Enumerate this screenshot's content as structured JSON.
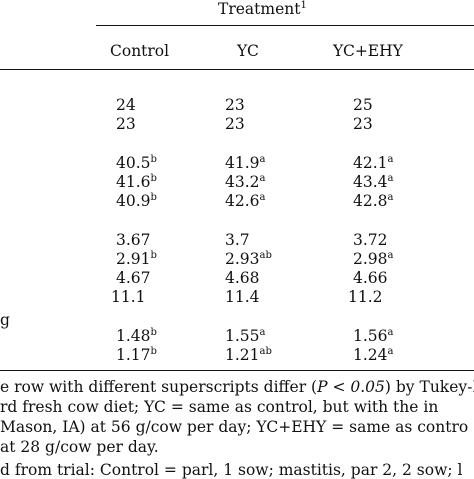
{
  "table": {
    "spanner": {
      "label": "Treatment",
      "mark": "1"
    },
    "columns": [
      "Control",
      "YC",
      "YC+EHY"
    ],
    "stub_fragment": "g",
    "rows": [
      {
        "cells": [
          {
            "v": "24",
            "s": ""
          },
          {
            "v": "23",
            "s": ""
          },
          {
            "v": "25",
            "s": ""
          }
        ]
      },
      {
        "cells": [
          {
            "v": "23",
            "s": ""
          },
          {
            "v": "23",
            "s": ""
          },
          {
            "v": "23",
            "s": ""
          }
        ]
      },
      {
        "cells": [
          {
            "v": "40.5",
            "s": "b"
          },
          {
            "v": "41.9",
            "s": "a"
          },
          {
            "v": "42.1",
            "s": "a"
          }
        ]
      },
      {
        "cells": [
          {
            "v": "41.6",
            "s": "b"
          },
          {
            "v": "43.2",
            "s": "a"
          },
          {
            "v": "43.4",
            "s": "a"
          }
        ]
      },
      {
        "cells": [
          {
            "v": "40.9",
            "s": "b"
          },
          {
            "v": "42.6",
            "s": "a"
          },
          {
            "v": "42.8",
            "s": "a"
          }
        ]
      },
      {
        "cells": [
          {
            "v": "3.67",
            "s": ""
          },
          {
            "v": "3.7",
            "s": ""
          },
          {
            "v": "3.72",
            "s": ""
          }
        ]
      },
      {
        "cells": [
          {
            "v": "2.91",
            "s": "b"
          },
          {
            "v": "2.93",
            "s": "ab"
          },
          {
            "v": "2.98",
            "s": "a"
          }
        ]
      },
      {
        "cells": [
          {
            "v": "4.67",
            "s": ""
          },
          {
            "v": "4.68",
            "s": ""
          },
          {
            "v": "4.66",
            "s": ""
          }
        ]
      },
      {
        "cells": [
          {
            "v": "11.1",
            "s": ""
          },
          {
            "v": "11.4",
            "s": ""
          },
          {
            "v": "11.2",
            "s": ""
          }
        ]
      },
      {
        "cells": [
          {
            "v": "1.48",
            "s": "b"
          },
          {
            "v": "1.55",
            "s": "a"
          },
          {
            "v": "1.56",
            "s": "a"
          }
        ]
      },
      {
        "cells": [
          {
            "v": "1.17",
            "s": "b"
          },
          {
            "v": "1.21",
            "s": "ab"
          },
          {
            "v": "1.24",
            "s": "a"
          }
        ]
      }
    ]
  },
  "footnotes": {
    "line1_pre": "e row with different superscripts differ (",
    "line1_math": "P < 0.05",
    "line1_post": ") by Tukey-K",
    "line2": "rd fresh cow diet; YC = same as control, but with the in",
    "line3": "Mason, IA) at 56 g/cow per day; YC+EHY = same as contro",
    "line4": "at 28 g/cow per day.",
    "line5": "d from trial: Control = parl, 1 sow; mastitis, par 2, 2 sow; l"
  }
}
